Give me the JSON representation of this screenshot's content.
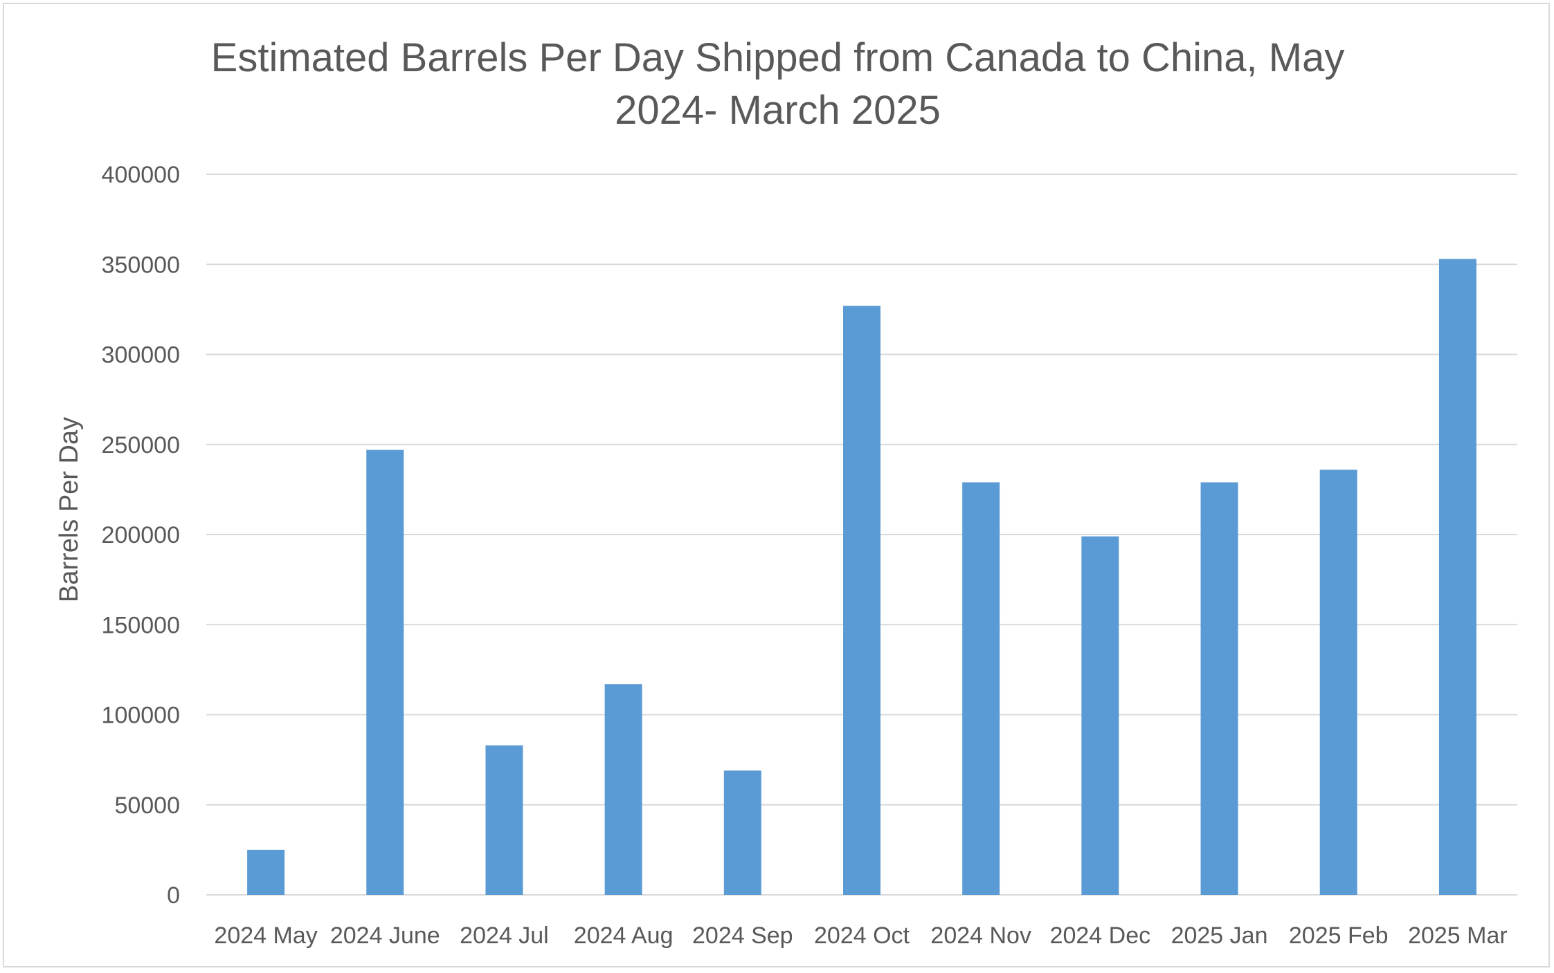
{
  "chart_data": {
    "type": "bar",
    "title_lines": [
      "Estimated Barrels Per Day Shipped from Canada to China, May",
      "2024- March 2025"
    ],
    "xlabel": "",
    "ylabel": "Barrels Per Day",
    "ylim": [
      0,
      400000
    ],
    "yticks": [
      0,
      50000,
      100000,
      150000,
      200000,
      250000,
      300000,
      350000,
      400000
    ],
    "ytick_labels": [
      "0",
      "50000",
      "100000",
      "150000",
      "200000",
      "250000",
      "300000",
      "350000",
      "400000"
    ],
    "grid": true,
    "legend": "none",
    "categories": [
      "2024 May",
      "2024 June",
      "2024 Jul",
      "2024 Aug",
      "2024 Sep",
      "2024 Oct",
      "2024 Nov",
      "2024 Dec",
      "2025 Jan",
      "2025 Feb",
      "2025 Mar"
    ],
    "values": [
      25000,
      247000,
      83000,
      117000,
      69000,
      327000,
      229000,
      199000,
      229000,
      236000,
      353000
    ],
    "bar_color": "#5B9BD5",
    "grid_color": "#d9d9d9"
  }
}
